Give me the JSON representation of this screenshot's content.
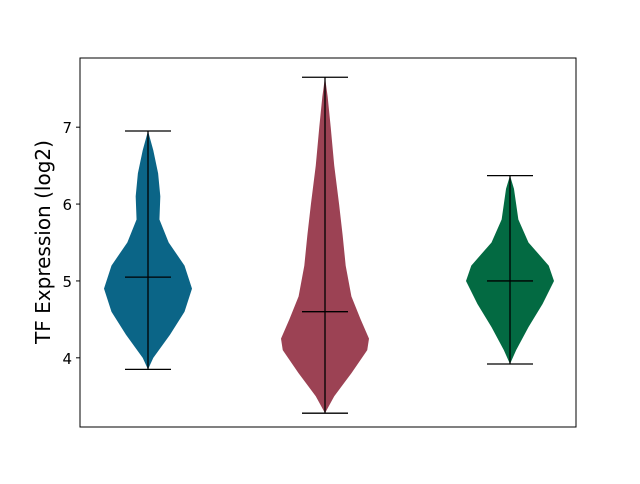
{
  "chart_data": {
    "type": "violin",
    "title": "",
    "xlabel": "",
    "ylabel": "TF Expression (log2)",
    "ylim": [
      3.1,
      7.9
    ],
    "yticks": [
      4,
      5,
      6,
      7
    ],
    "grid": false,
    "series": [
      {
        "color": "#0b6587",
        "min": 3.85,
        "max": 6.95,
        "median": 5.05,
        "density": [
          [
            3.85,
            0
          ],
          [
            4.0,
            0.12
          ],
          [
            4.3,
            0.5
          ],
          [
            4.6,
            0.83
          ],
          [
            4.9,
            1
          ],
          [
            5.2,
            0.83
          ],
          [
            5.5,
            0.47
          ],
          [
            5.8,
            0.26
          ],
          [
            6.1,
            0.28
          ],
          [
            6.4,
            0.23
          ],
          [
            6.7,
            0.12
          ],
          [
            6.95,
            0
          ]
        ]
      },
      {
        "color": "#9c4254",
        "min": 3.28,
        "max": 7.65,
        "median": 4.6,
        "density": [
          [
            3.28,
            0
          ],
          [
            3.5,
            0.21
          ],
          [
            3.8,
            0.6
          ],
          [
            4.1,
            0.96
          ],
          [
            4.25,
            1
          ],
          [
            4.5,
            0.81
          ],
          [
            4.8,
            0.6
          ],
          [
            5.2,
            0.47
          ],
          [
            5.6,
            0.4
          ],
          [
            6.0,
            0.32
          ],
          [
            6.5,
            0.21
          ],
          [
            7.0,
            0.13
          ],
          [
            7.4,
            0.06
          ],
          [
            7.65,
            0
          ]
        ]
      },
      {
        "color": "#036a42",
        "min": 3.92,
        "max": 6.37,
        "median": 5.0,
        "density": [
          [
            3.92,
            0
          ],
          [
            4.1,
            0.14
          ],
          [
            4.4,
            0.42
          ],
          [
            4.7,
            0.74
          ],
          [
            5.0,
            1
          ],
          [
            5.2,
            0.88
          ],
          [
            5.5,
            0.42
          ],
          [
            5.8,
            0.19
          ],
          [
            6.0,
            0.14
          ],
          [
            6.2,
            0.09
          ],
          [
            6.37,
            0
          ]
        ]
      }
    ]
  }
}
